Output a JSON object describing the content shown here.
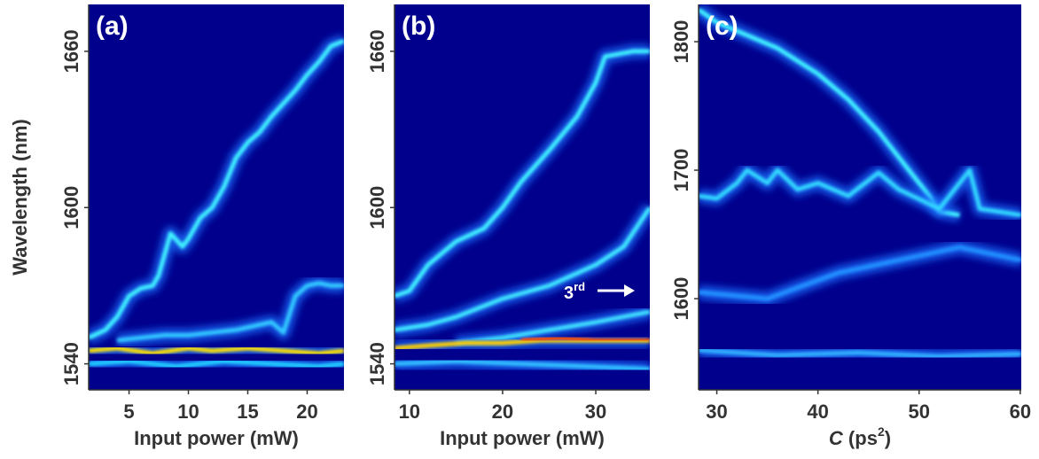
{
  "chart_data": [
    {
      "type": "heatmap",
      "panel_label": "(a)",
      "ylabel": "Wavelength (nm)",
      "xlabel": "Input power (mW)",
      "xlim": [
        1.6,
        23.1
      ],
      "ylim": [
        1530,
        1678
      ],
      "xticks": [
        5,
        10,
        15,
        20
      ],
      "yticks": [
        1540,
        1600,
        1660
      ],
      "series": [
        {
          "color": "#40f0ff",
          "x": [
            1.6,
            3,
            4,
            5,
            6,
            7,
            7.5,
            8,
            8.5,
            9.5,
            10,
            11,
            12,
            13,
            14,
            15,
            16,
            17,
            18,
            19,
            20,
            21,
            22,
            23.1
          ],
          "values": [
            1550,
            1553,
            1558,
            1566,
            1569,
            1570,
            1574,
            1582,
            1590,
            1585,
            1588,
            1596,
            1600,
            1608,
            1619,
            1625,
            1629,
            1635,
            1640,
            1645,
            1651,
            1656,
            1662,
            1664
          ]
        },
        {
          "color": "#30c8ff",
          "x": [
            4,
            6,
            8,
            10,
            12,
            14,
            16,
            17,
            18,
            19,
            20,
            21,
            22,
            23.1
          ],
          "values": [
            1549,
            1550,
            1551,
            1551,
            1552,
            1553,
            1555,
            1556,
            1552,
            1566,
            1570,
            1571,
            1570,
            1570
          ]
        },
        {
          "color": "#ffe000",
          "x": [
            1.6,
            4,
            7,
            10,
            12,
            15,
            18,
            21,
            23.1
          ],
          "values": [
            1545,
            1546,
            1544,
            1546,
            1545,
            1546,
            1545,
            1544,
            1545
          ]
        },
        {
          "color": "#20d0ff",
          "x": [
            1.6,
            5,
            9,
            13,
            17,
            21,
            23.1
          ],
          "values": [
            1540,
            1541,
            1539,
            1541,
            1540,
            1539,
            1540
          ]
        }
      ]
    },
    {
      "type": "heatmap",
      "panel_label": "(b)",
      "xlabel": "Input power (mW)",
      "xlim": [
        8.4,
        35.8
      ],
      "ylim": [
        1530,
        1678
      ],
      "xticks": [
        10,
        20,
        30
      ],
      "yticks": [
        1540,
        1600,
        1660
      ],
      "annotation": {
        "text": "3",
        "sup": "rd"
      },
      "series": [
        {
          "color": "#40f0ff",
          "x": [
            8.4,
            10,
            12,
            15,
            18,
            20,
            22,
            25,
            28,
            30,
            31,
            34,
            35.8
          ],
          "values": [
            1566,
            1568,
            1578,
            1587,
            1592,
            1600,
            1610,
            1622,
            1635,
            1648,
            1658,
            1660,
            1660
          ]
        },
        {
          "color": "#40e8ff",
          "x": [
            8.4,
            12,
            15,
            20,
            25,
            30,
            33,
            35.8
          ],
          "values": [
            1553,
            1555,
            1558,
            1565,
            1570,
            1578,
            1585,
            1600
          ]
        },
        {
          "color": "#40e0ff",
          "x": [
            15,
            20,
            25,
            30,
            35.8
          ],
          "values": [
            1548,
            1550,
            1553,
            1556,
            1560
          ]
        },
        {
          "color": "#ffd000",
          "x": [
            8.4,
            12,
            16,
            20,
            24,
            28,
            32,
            35.8
          ],
          "values": [
            1546,
            1547,
            1548,
            1548,
            1549,
            1549,
            1549,
            1549
          ]
        },
        {
          "color": "#ff5000",
          "x": [
            22,
            26,
            30,
            35.8
          ],
          "values": [
            1549,
            1550,
            1549,
            1549
          ]
        },
        {
          "color": "#30c0ff",
          "x": [
            8.4,
            15,
            22,
            29,
            35.8
          ],
          "values": [
            1540,
            1541,
            1540,
            1539,
            1538
          ]
        }
      ]
    },
    {
      "type": "heatmap",
      "panel_label": "(c)",
      "xlabel": [
        "C",
        " (ps",
        "2",
        ")"
      ],
      "xlim": [
        28.2,
        60.1
      ],
      "ylim": [
        1529,
        1829
      ],
      "xticks": [
        30,
        40,
        50,
        60
      ],
      "yticks": [
        1600,
        1700,
        1800
      ],
      "series": [
        {
          "color": "#40f0ff",
          "x": [
            28.2,
            30,
            33,
            36,
            40,
            43,
            46,
            49,
            51,
            52,
            54
          ],
          "values": [
            1825,
            1815,
            1805,
            1795,
            1775,
            1755,
            1730,
            1700,
            1680,
            1668,
            1665
          ]
        },
        {
          "color": "#30d8ff",
          "x": [
            28.2,
            30,
            32,
            33,
            35,
            36,
            38,
            40,
            43,
            46,
            48,
            52,
            54,
            55,
            56,
            60.1
          ],
          "values": [
            1680,
            1678,
            1690,
            1700,
            1690,
            1700,
            1685,
            1690,
            1680,
            1698,
            1685,
            1670,
            1690,
            1700,
            1670,
            1665
          ]
        },
        {
          "color": "#2090ff",
          "x": [
            28.2,
            35,
            42,
            48,
            54,
            60.1
          ],
          "values": [
            1605,
            1600,
            1620,
            1630,
            1640,
            1630
          ]
        },
        {
          "color": "#30b0ff",
          "x": [
            28.2,
            36,
            44,
            52,
            60.1
          ],
          "values": [
            1560,
            1556,
            1558,
            1555,
            1557
          ]
        }
      ]
    }
  ]
}
